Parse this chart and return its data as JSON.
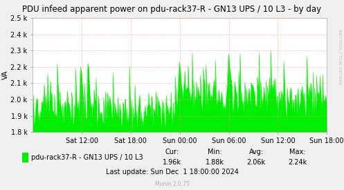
{
  "title": "PDU infeed apparent power on pdu-rack37-R - GN13 UPS / 10 L3 - by day",
  "ylabel": "VA",
  "background_color": "#f0f0f0",
  "plot_bg_color": "#ffffff",
  "grid_color": "#ff9999",
  "line_color": "#00ee00",
  "fill_color": "#00ee00",
  "ylim": [
    1800,
    2500
  ],
  "yticks": [
    1800,
    1900,
    2000,
    2100,
    2200,
    2300,
    2400,
    2500
  ],
  "ytick_labels": [
    "1.8 k",
    "1.9 k",
    "2.0 k",
    "2.1 k",
    "2.2 k",
    "2.3 k",
    "2.4 k",
    "2.5 k"
  ],
  "xtick_labels": [
    "Sat 12:00",
    "Sat 18:00",
    "Sun 00:00",
    "Sun 06:00",
    "Sun 12:00",
    "Sun 18:00"
  ],
  "xtick_positions": [
    6,
    12,
    18,
    24,
    30,
    36
  ],
  "xlim": [
    0,
    36
  ],
  "legend_label": "pdu-rack37-R - GN13 UPS / 10 L3",
  "cur": "1.96k",
  "min": "1.88k",
  "avg": "2.06k",
  "max": "2.24k",
  "last_update": "Last update: Sun Dec  1 18:00:00 2024",
  "munin_version": "Munin 2.0.75",
  "rrdtool_text": "RRDTOOL / TOBI OETIKER",
  "title_fontsize": 8.5,
  "axis_fontsize": 7,
  "legend_fontsize": 7,
  "stats_fontsize": 7
}
